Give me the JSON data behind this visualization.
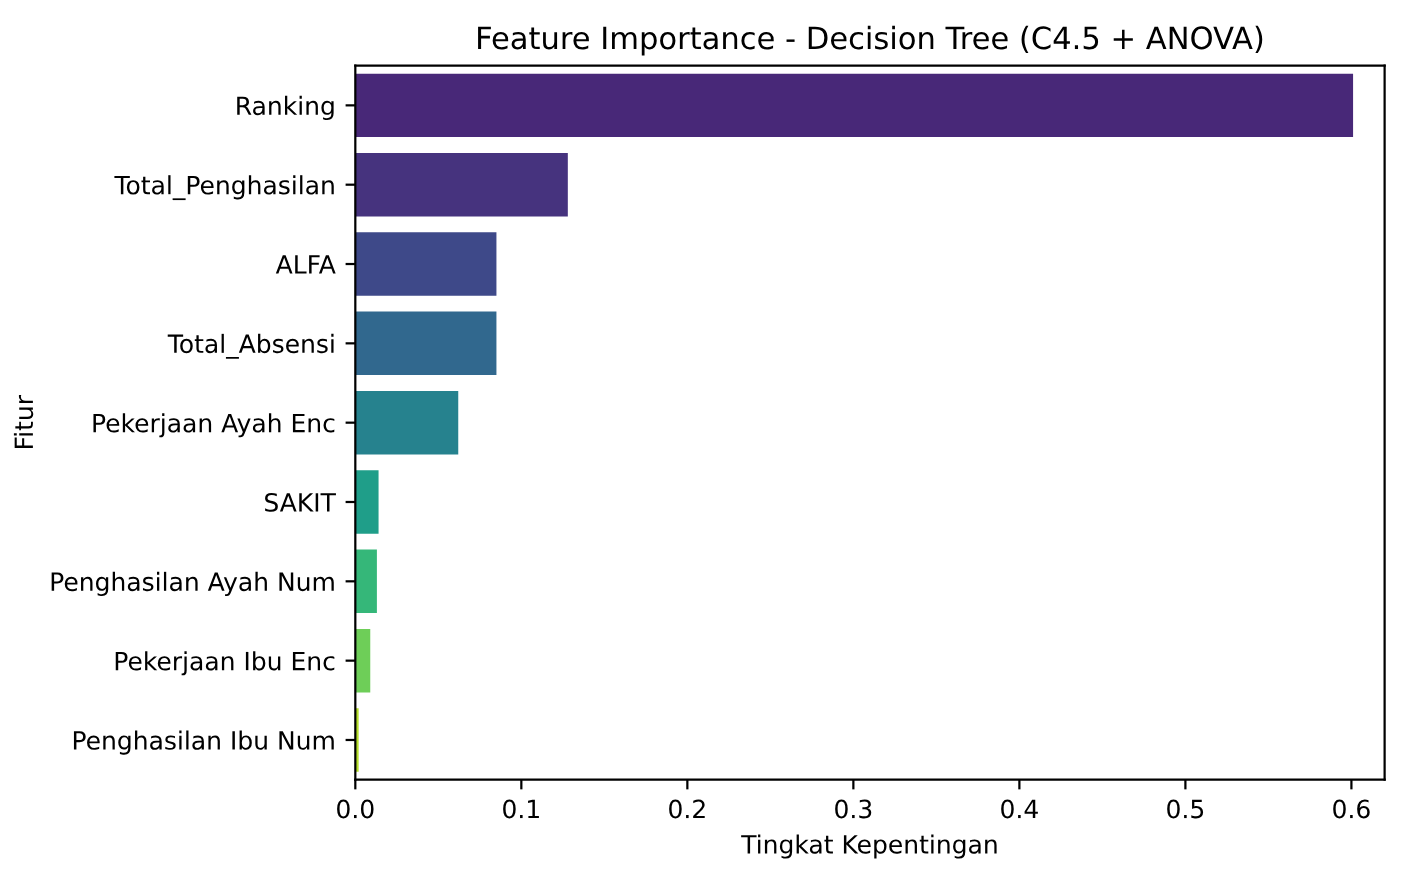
{
  "chart_data": {
    "type": "bar",
    "orientation": "horizontal",
    "title": "Feature Importance - Decision Tree (C4.5 + ANOVA)",
    "xlabel": "Tingkat Kepentingan",
    "ylabel": "Fitur",
    "categories": [
      "Ranking",
      "Total_Penghasilan",
      "ALFA",
      "Total_Absensi",
      "Pekerjaan Ayah Enc",
      "SAKIT",
      "Penghasilan Ayah Num",
      "Pekerjaan Ibu Enc",
      "Penghasilan Ibu Num"
    ],
    "values": [
      0.601,
      0.128,
      0.085,
      0.085,
      0.062,
      0.014,
      0.013,
      0.009,
      0.002
    ],
    "colors": [
      "#482878",
      "#46337e",
      "#3e4989",
      "#31688e",
      "#26828e",
      "#1f9e89",
      "#35b779",
      "#6ece58",
      "#b5de2b"
    ],
    "xlim": [
      0,
      0.62
    ],
    "xticks": [
      {
        "value": 0,
        "label": "0.0"
      },
      0.1,
      0.2,
      0.3,
      0.4,
      0.5,
      0.6
    ],
    "grid": false
  }
}
